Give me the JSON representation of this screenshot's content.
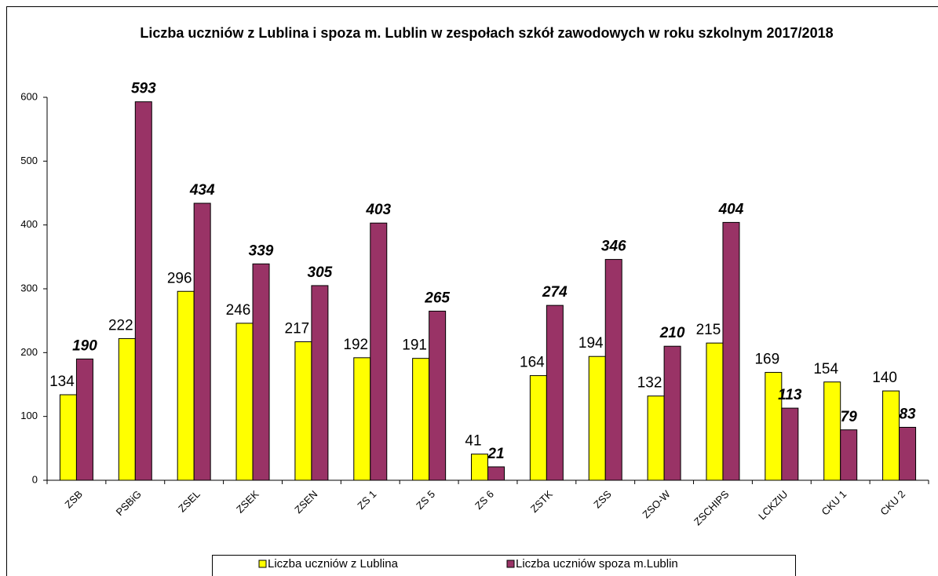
{
  "chart_data": {
    "type": "bar",
    "title": "Liczba uczniów z Lublina i spoza m. Lublin w zespołach szkół zawodowych w roku szkolnym 2017/2018",
    "categories": [
      "ZSB",
      "PSBiG",
      "ZSEL",
      "ZSEK",
      "ZSEN",
      "ZS 1",
      "ZS 5",
      "ZS 6",
      "ZSTK",
      "ZSS",
      "ZSO-W",
      "ZSCHIPS",
      "LCKZIU",
      "CKU 1",
      "CKU 2"
    ],
    "series": [
      {
        "name": "Liczba uczniów z Lublina",
        "color": "#ffff00",
        "values": [
          134,
          222,
          296,
          246,
          217,
          192,
          191,
          41,
          164,
          194,
          132,
          215,
          169,
          154,
          140
        ]
      },
      {
        "name": "Liczba uczniów spoza m.Lublin",
        "color": "#993366",
        "values": [
          190,
          593,
          434,
          339,
          305,
          403,
          265,
          21,
          274,
          346,
          210,
          404,
          113,
          79,
          83
        ]
      }
    ],
    "ylim": [
      0,
      600
    ],
    "yticks": [
      0,
      100,
      200,
      300,
      400,
      500,
      600
    ],
    "grid": false,
    "legend": "bottom"
  }
}
